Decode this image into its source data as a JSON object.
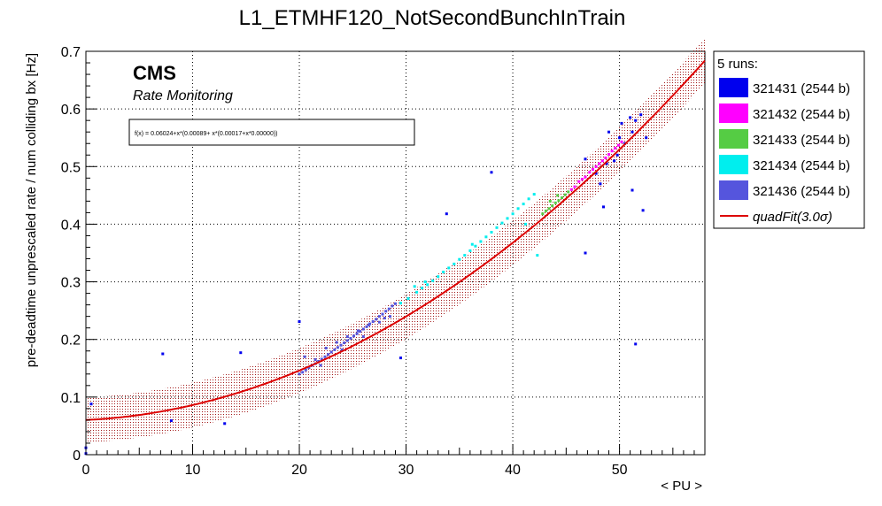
{
  "chart_data": {
    "type": "scatter",
    "title": "L1_ETMHF120_NotSecondBunchInTrain",
    "xlabel": "< PU >",
    "ylabel": "pre-deadtime unprescaled rate / num colliding bx [Hz]",
    "xlim": [
      0,
      58
    ],
    "ylim": [
      0,
      0.7
    ],
    "xticks": [
      0,
      10,
      20,
      30,
      40,
      50
    ],
    "yticks": [
      0,
      0.1,
      0.2,
      0.3,
      0.4,
      0.5,
      0.6,
      0.7
    ],
    "ytick_labels": [
      "0",
      "0.1",
      "0.2",
      "0.3",
      "0.4",
      "0.5",
      "0.6",
      "0.7"
    ],
    "grid": true,
    "legend_position": "right",
    "annotations": {
      "brand": "CMS",
      "subtitle": "Rate Monitoring",
      "formula": "f(x) = 0.06024+x*(0.00089+ x*(0.00017+x*0.00000))"
    },
    "legend": {
      "header": "5 runs:",
      "fit_label": "quadFit(3.0σ)"
    },
    "fit": {
      "name": "quadFit(3.0σ)",
      "c0": 0.06024,
      "c1": 0.00089,
      "c2": 0.00017,
      "c3": 0.0,
      "band_halfwidth": 0.039,
      "x_range": [
        0,
        58
      ],
      "color": "#dd0000",
      "band_color": "#990000"
    },
    "series": [
      {
        "name": "321431 (2544 b)",
        "color": "#0000ee",
        "points": [
          [
            0,
            0.002
          ],
          [
            0,
            0.012
          ],
          [
            0.5,
            0.088
          ],
          [
            7.2,
            0.175
          ],
          [
            8,
            0.059
          ],
          [
            13,
            0.054
          ],
          [
            14.5,
            0.177
          ],
          [
            20,
            0.231
          ],
          [
            29.5,
            0.168
          ],
          [
            33.8,
            0.418
          ],
          [
            38,
            0.49
          ],
          [
            46.8,
            0.35
          ],
          [
            51.2,
            0.459
          ],
          [
            51.5,
            0.192
          ],
          [
            52.2,
            0.424
          ],
          [
            48.5,
            0.43
          ],
          [
            49.5,
            0.51
          ],
          [
            50.2,
            0.575
          ],
          [
            51,
            0.585
          ],
          [
            52.5,
            0.55
          ],
          [
            49,
            0.56
          ],
          [
            48.2,
            0.47
          ],
          [
            49.8,
            0.52
          ],
          [
            50.5,
            0.54
          ],
          [
            51.5,
            0.58
          ],
          [
            47.8,
            0.488
          ],
          [
            48.8,
            0.505
          ],
          [
            50,
            0.55
          ],
          [
            51.2,
            0.56
          ],
          [
            52,
            0.59
          ],
          [
            46.8,
            0.513
          ]
        ]
      },
      {
        "name": "321432 (2544 b)",
        "color": "#ff00ff",
        "points": [
          [
            45.5,
            0.46
          ],
          [
            45.8,
            0.465
          ],
          [
            46.2,
            0.474
          ],
          [
            46.5,
            0.478
          ],
          [
            46.8,
            0.482
          ],
          [
            47.2,
            0.49
          ],
          [
            47.5,
            0.495
          ],
          [
            47.8,
            0.5
          ],
          [
            48.1,
            0.505
          ],
          [
            48.4,
            0.51
          ],
          [
            48.7,
            0.515
          ],
          [
            49,
            0.521
          ],
          [
            49.3,
            0.527
          ],
          [
            49.6,
            0.532
          ],
          [
            49.9,
            0.537
          ],
          [
            50.2,
            0.543
          ]
        ]
      },
      {
        "name": "321433 (2544 b)",
        "color": "#55cc44",
        "points": [
          [
            42.8,
            0.418
          ],
          [
            43.1,
            0.423
          ],
          [
            43.4,
            0.427
          ],
          [
            43.7,
            0.432
          ],
          [
            44,
            0.437
          ],
          [
            44.3,
            0.441
          ],
          [
            44.6,
            0.446
          ],
          [
            44.9,
            0.451
          ],
          [
            45.2,
            0.456
          ],
          [
            43.5,
            0.44
          ],
          [
            44.2,
            0.45
          ]
        ]
      },
      {
        "name": "321434 (2544 b)",
        "color": "#00eeee",
        "points": [
          [
            29.5,
            0.263
          ],
          [
            30.2,
            0.271
          ],
          [
            31,
            0.282
          ],
          [
            31.5,
            0.289
          ],
          [
            32,
            0.295
          ],
          [
            32.5,
            0.302
          ],
          [
            33,
            0.309
          ],
          [
            33.5,
            0.317
          ],
          [
            34,
            0.324
          ],
          [
            34.5,
            0.331
          ],
          [
            35,
            0.339
          ],
          [
            35.5,
            0.346
          ],
          [
            36,
            0.354
          ],
          [
            36.5,
            0.362
          ],
          [
            37,
            0.37
          ],
          [
            37.5,
            0.378
          ],
          [
            38,
            0.386
          ],
          [
            38.5,
            0.394
          ],
          [
            39,
            0.402
          ],
          [
            39.5,
            0.41
          ],
          [
            40,
            0.418
          ],
          [
            40.5,
            0.427
          ],
          [
            41,
            0.435
          ],
          [
            41.5,
            0.444
          ],
          [
            42,
            0.452
          ],
          [
            42.3,
            0.346
          ],
          [
            30.8,
            0.292
          ],
          [
            31.8,
            0.3
          ],
          [
            36.2,
            0.365
          ],
          [
            41.2,
            0.4
          ]
        ]
      },
      {
        "name": "321436 (2544 b)",
        "color": "#5555dd",
        "points": [
          [
            20,
            0.14
          ],
          [
            20.3,
            0.143
          ],
          [
            20.6,
            0.147
          ],
          [
            20.9,
            0.151
          ],
          [
            21.2,
            0.155
          ],
          [
            21.5,
            0.158
          ],
          [
            21.8,
            0.162
          ],
          [
            22.1,
            0.166
          ],
          [
            22.4,
            0.17
          ],
          [
            22.7,
            0.174
          ],
          [
            23,
            0.178
          ],
          [
            23.3,
            0.182
          ],
          [
            23.6,
            0.186
          ],
          [
            23.9,
            0.19
          ],
          [
            24.2,
            0.194
          ],
          [
            24.5,
            0.198
          ],
          [
            24.8,
            0.202
          ],
          [
            25.1,
            0.206
          ],
          [
            25.4,
            0.21
          ],
          [
            25.7,
            0.214
          ],
          [
            26,
            0.218
          ],
          [
            26.3,
            0.222
          ],
          [
            26.6,
            0.227
          ],
          [
            26.9,
            0.231
          ],
          [
            27.2,
            0.235
          ],
          [
            27.5,
            0.24
          ],
          [
            27.8,
            0.244
          ],
          [
            28.1,
            0.249
          ],
          [
            28.4,
            0.253
          ],
          [
            28.7,
            0.258
          ],
          [
            29,
            0.262
          ],
          [
            20.5,
            0.17
          ],
          [
            21.5,
            0.165
          ],
          [
            22.5,
            0.185
          ],
          [
            23.5,
            0.195
          ],
          [
            24.5,
            0.205
          ],
          [
            25.5,
            0.215
          ],
          [
            26.5,
            0.225
          ],
          [
            27.5,
            0.23
          ],
          [
            28.5,
            0.24
          ],
          [
            22,
            0.155
          ],
          [
            24,
            0.182
          ],
          [
            26,
            0.205
          ],
          [
            28,
            0.237
          ]
        ]
      }
    ]
  }
}
